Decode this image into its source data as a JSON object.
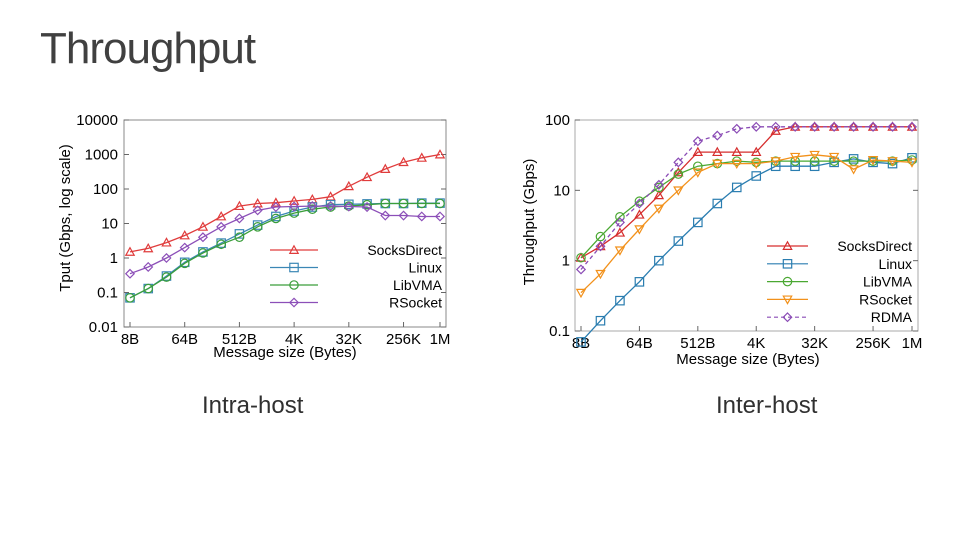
{
  "slide": {
    "title": "Throughput",
    "caption_left": "Intra-host",
    "caption_right": "Inter-host"
  },
  "chart_data": [
    {
      "id": "intra-host",
      "type": "line",
      "log_y": true,
      "categories_count": 18,
      "x_tick_labels": [
        "8B",
        "64B",
        "512B",
        "4K",
        "32K",
        "256K",
        "1M"
      ],
      "x_tick_positions": [
        0,
        3,
        6,
        9,
        12,
        15,
        17
      ],
      "xlabel": "Message size (Bytes)",
      "ylabel": "Tput (Gbps, log scale)",
      "ylim": [
        0.01,
        10000
      ],
      "y_ticks": [
        0.01,
        0.1,
        1,
        10,
        100,
        1000,
        10000
      ],
      "y_tick_labels": [
        "0.01",
        "0.1",
        "1",
        "10",
        "100",
        "1000",
        "10000"
      ],
      "legend_position": "bottom-right",
      "series": [
        {
          "name": "SocksDirect",
          "color": "#e03c3c",
          "marker": "triangle",
          "dashed": false,
          "values": [
            1.5,
            1.9,
            2.8,
            4.5,
            8,
            16,
            32,
            38,
            40,
            45,
            50,
            60,
            120,
            220,
            380,
            600,
            800,
            1000
          ]
        },
        {
          "name": "Linux",
          "color": "#3b87b5",
          "marker": "square",
          "dashed": false,
          "values": [
            0.07,
            0.13,
            0.3,
            0.75,
            1.5,
            2.7,
            5,
            9,
            16,
            23,
            30,
            35,
            36,
            37,
            38,
            38,
            39,
            39
          ]
        },
        {
          "name": "LibVMA",
          "color": "#3a9e3a",
          "marker": "circle",
          "dashed": false,
          "values": [
            0.07,
            0.13,
            0.28,
            0.7,
            1.4,
            2.5,
            4,
            8,
            14,
            20,
            26,
            30,
            32,
            35,
            38,
            38,
            38,
            38
          ]
        },
        {
          "name": "RSocket",
          "color": "#8c4fb8",
          "marker": "diamond",
          "dashed": false,
          "values": [
            0.35,
            0.55,
            1,
            2,
            4,
            8,
            14,
            24,
            30,
            31,
            32,
            32,
            31,
            30,
            17,
            17,
            16,
            16
          ]
        }
      ]
    },
    {
      "id": "inter-host",
      "type": "line",
      "log_y": true,
      "categories_count": 18,
      "x_tick_labels": [
        "8B",
        "64B",
        "512B",
        "4K",
        "32K",
        "256K",
        "1M"
      ],
      "x_tick_positions": [
        0,
        3,
        6,
        9,
        12,
        15,
        17
      ],
      "xlabel": "Message size (Bytes)",
      "ylabel": "Throughput (Gbps)",
      "ylim": [
        0.1,
        100
      ],
      "y_ticks": [
        0.1,
        1,
        10,
        100
      ],
      "y_tick_labels": [
        "0.1",
        "1",
        "10",
        "100"
      ],
      "legend_position": "bottom-right",
      "series": [
        {
          "name": "SocksDirect",
          "color": "#d62d2d",
          "marker": "triangle",
          "dashed": false,
          "values": [
            1.1,
            1.6,
            2.5,
            4.5,
            8.5,
            18,
            35,
            35,
            35,
            35,
            70,
            80,
            80,
            80,
            80,
            80,
            80,
            80
          ]
        },
        {
          "name": "Linux",
          "color": "#2a7db0",
          "marker": "square",
          "dashed": false,
          "values": [
            0.07,
            0.14,
            0.27,
            0.5,
            1,
            1.9,
            3.5,
            6.5,
            11,
            16,
            22,
            22,
            22,
            25,
            28,
            25,
            24,
            29
          ]
        },
        {
          "name": "LibVMA",
          "color": "#4aa832",
          "marker": "circle",
          "dashed": false,
          "values": [
            1.1,
            2.2,
            4.2,
            7,
            11,
            17,
            22,
            24,
            26,
            25,
            26,
            26,
            26,
            26,
            26,
            26,
            26,
            27
          ]
        },
        {
          "name": "RSocket",
          "color": "#f2911b",
          "marker": "triangle-down",
          "dashed": false,
          "values": [
            0.35,
            0.65,
            1.4,
            2.8,
            5.5,
            10,
            18,
            24,
            24,
            24,
            26,
            30,
            32,
            30,
            20,
            27,
            26,
            25
          ]
        },
        {
          "name": "RDMA",
          "color": "#8a4bb5",
          "marker": "diamond",
          "dashed": true,
          "values": [
            0.75,
            1.6,
            3.5,
            6.5,
            12,
            25,
            50,
            60,
            75,
            80,
            80,
            80,
            80,
            80,
            80,
            80,
            80,
            80
          ]
        }
      ]
    }
  ]
}
